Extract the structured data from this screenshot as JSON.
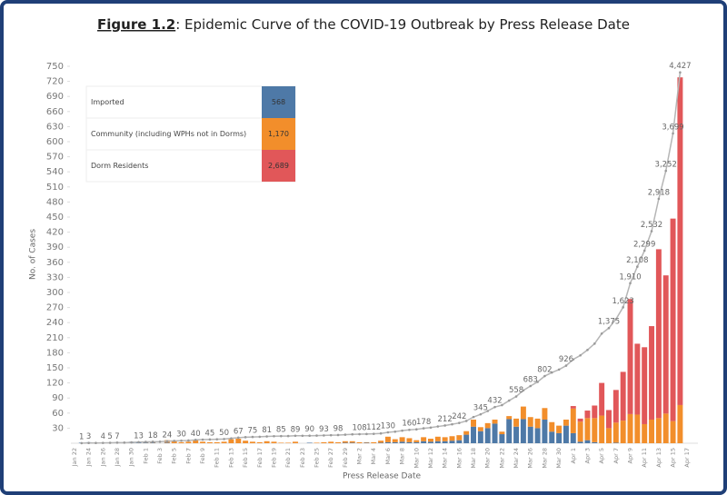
{
  "chart_data": {
    "type": "bar",
    "stacked": true,
    "title_label": "Figure 1.2",
    "title": ": Epidemic Curve of the COVID-19 Outbreak by Press Release Date",
    "ylabel": "No. of Cases",
    "xlabel": "Press Release Date",
    "ylim": [
      0,
      750
    ],
    "yticks": [
      30,
      60,
      90,
      120,
      150,
      180,
      210,
      240,
      270,
      300,
      330,
      360,
      390,
      420,
      450,
      480,
      510,
      540,
      570,
      600,
      630,
      660,
      690,
      720,
      750
    ],
    "y2lim": [
      0,
      4500
    ],
    "grid": false,
    "legend": "top-left",
    "categories": [
      "Jan 22",
      null,
      "Jan 24",
      null,
      "Jan 26",
      null,
      "Jan 28",
      null,
      "Jan 30",
      null,
      "Feb 1",
      null,
      "Feb 3",
      null,
      "Feb 5",
      null,
      "Feb 7",
      null,
      "Feb 9",
      null,
      "Feb 11",
      null,
      "Feb 13",
      null,
      "Feb 15",
      null,
      "Feb 17",
      null,
      "Feb 19",
      null,
      "Feb 21",
      null,
      "Feb 23",
      null,
      "Feb 25",
      null,
      "Feb 27",
      null,
      "Feb 29",
      null,
      "Mar 2",
      null,
      "Mar 4",
      null,
      "Mar 6",
      null,
      "Mar 8",
      null,
      "Mar 10",
      null,
      "Mar 12",
      null,
      "Mar 14",
      null,
      "Mar 16",
      null,
      "Mar 18",
      null,
      "Mar 20",
      null,
      "Mar 22",
      null,
      "Mar 24",
      null,
      "Mar 26",
      null,
      "Mar 28",
      null,
      "Mar 30",
      null,
      "Apr 1",
      null,
      "Apr 3",
      null,
      "Apr 5",
      null,
      "Apr 7",
      null,
      "Apr 9",
      null,
      "Apr 11",
      null,
      "Apr 13",
      null,
      "Apr 15",
      null,
      "Apr 17",
      null
    ],
    "series": [
      {
        "name": "Imported",
        "color": "#4e79a7",
        "total": {
          "value": 568,
          "label": "568"
        },
        "values": [
          0,
          1,
          2,
          0,
          1,
          1,
          2,
          0,
          3,
          3,
          1,
          1,
          0,
          1,
          0,
          0,
          0,
          0,
          0,
          0,
          0,
          0,
          0,
          0,
          0,
          0,
          0,
          0,
          0,
          0,
          0,
          0,
          0,
          1,
          0,
          0,
          0,
          0,
          1,
          1,
          0,
          1,
          0,
          1,
          2,
          2,
          3,
          2,
          2,
          4,
          3,
          4,
          4,
          5,
          6,
          17,
          33,
          24,
          30,
          39,
          18,
          48,
          33,
          48,
          33,
          30,
          47,
          23,
          20,
          35,
          20,
          3,
          6,
          2,
          0,
          0,
          1,
          0,
          0,
          0,
          0,
          0,
          0,
          0,
          0,
          0,
          null,
          null
        ]
      },
      {
        "name": "Community (including WPHs not in Dorms)",
        "color": "#f28e2b",
        "total": {
          "value": 1170,
          "label": "1,170"
        },
        "values": [
          0,
          0,
          0,
          0,
          0,
          0,
          0,
          0,
          0,
          0,
          2,
          1,
          0,
          5,
          4,
          2,
          3,
          7,
          3,
          2,
          2,
          3,
          8,
          9,
          5,
          3,
          2,
          4,
          3,
          1,
          1,
          3,
          0,
          0,
          1,
          2,
          3,
          2,
          3,
          3,
          2,
          1,
          2,
          4,
          11,
          6,
          9,
          8,
          4,
          8,
          6,
          9,
          8,
          9,
          10,
          7,
          14,
          8,
          10,
          8,
          5,
          6,
          16,
          25,
          19,
          19,
          23,
          19,
          15,
          12,
          49,
          40,
          44,
          48,
          55,
          30,
          40,
          45,
          58,
          57,
          38,
          47,
          50,
          59,
          44,
          76,
          null,
          null
        ]
      },
      {
        "name": "Dorm Residents",
        "color": "#e15759",
        "total": {
          "value": 2689,
          "label": "2,689"
        },
        "values": [
          0,
          0,
          0,
          0,
          0,
          0,
          0,
          0,
          0,
          0,
          0,
          0,
          0,
          0,
          0,
          0,
          0,
          0,
          0,
          0,
          0,
          0,
          0,
          0,
          0,
          0,
          0,
          0,
          0,
          0,
          0,
          0,
          0,
          0,
          0,
          0,
          0,
          0,
          0,
          0,
          0,
          0,
          0,
          0,
          0,
          0,
          0,
          0,
          0,
          0,
          0,
          0,
          0,
          0,
          0,
          0,
          0,
          0,
          0,
          0,
          0,
          0,
          0,
          0,
          0,
          0,
          0,
          0,
          0,
          0,
          5,
          6,
          15,
          25,
          65,
          36,
          65,
          97,
          229,
          141,
          153,
          186,
          336,
          275,
          403,
          652,
          null,
          null
        ]
      },
      {
        "type": "line",
        "axis": "y2",
        "color": "#b5b5b5",
        "values": [
          null,
          1,
          3,
          3,
          4,
          5,
          7,
          7,
          10,
          13,
          16,
          18,
          18,
          24,
          28,
          30,
          33,
          40,
          43,
          45,
          47,
          50,
          58,
          67,
          72,
          75,
          77,
          81,
          84,
          85,
          86,
          89,
          89,
          90,
          91,
          93,
          96,
          98,
          102,
          106,
          108,
          110,
          112,
          117,
          130,
          138,
          150,
          160,
          166,
          178,
          187,
          200,
          212,
          226,
          242,
          266,
          313,
          345,
          385,
          432,
          455,
          509,
          558,
          631,
          683,
          732,
          802,
          844,
          879,
          926,
          1000,
          1049,
          1114,
          1189,
          1309,
          1375,
          1481,
          1623,
          1910,
          2108,
          2299,
          2532,
          2918,
          3252,
          3699,
          4427,
          null,
          null
        ],
        "value_labels": [
          null,
          "1",
          "3",
          null,
          "4",
          "5",
          "7",
          null,
          null,
          "13",
          null,
          "18",
          null,
          "24",
          null,
          "30",
          null,
          "40",
          null,
          "45",
          null,
          "50",
          null,
          "67",
          null,
          "75",
          null,
          "81",
          null,
          "85",
          null,
          "89",
          null,
          "90",
          null,
          "93",
          null,
          "98",
          null,
          null,
          "108",
          null,
          "112",
          null,
          "130",
          null,
          null,
          "160",
          null,
          "178",
          null,
          null,
          "212",
          null,
          "242",
          null,
          null,
          "345",
          null,
          "432",
          null,
          null,
          "558",
          null,
          "683",
          null,
          "802",
          null,
          null,
          "926",
          null,
          null,
          null,
          null,
          null,
          "1,375",
          null,
          "1,623",
          "1,910",
          "2,108",
          "2,299",
          "2,532",
          "2,918",
          "3,252",
          "3,699",
          "4,427",
          null,
          null
        ]
      }
    ]
  }
}
